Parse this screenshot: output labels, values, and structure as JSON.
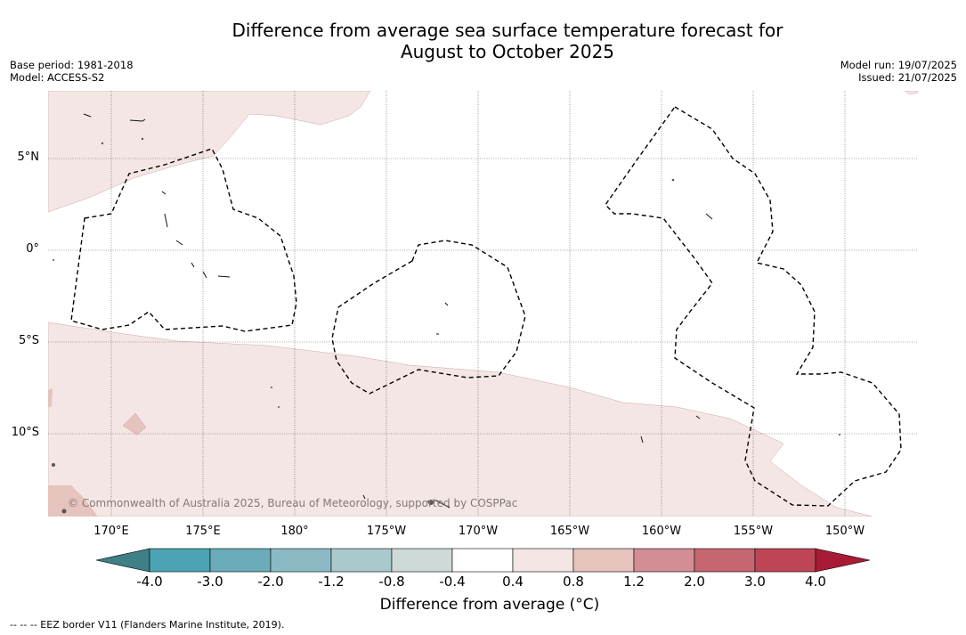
{
  "title_line1": "Difference from average sea surface temperature forecast for",
  "title_line2": "August to October 2025",
  "meta_left": [
    "Base period: 1981-2018",
    "Model: ACCESS-S2"
  ],
  "meta_right": [
    "Model run: 19/07/2025",
    "Issued: 21/07/2025"
  ],
  "lat_labels": [
    {
      "text": "5°N",
      "lat": 5
    },
    {
      "text": "0°",
      "lat": 0
    },
    {
      "text": "5°S",
      "lat": -5
    },
    {
      "text": "10°S",
      "lat": -10
    }
  ],
  "lon_labels": [
    {
      "text": "170°E",
      "lon": 170
    },
    {
      "text": "175°E",
      "lon": 175
    },
    {
      "text": "180°",
      "lon": 180
    },
    {
      "text": "175°W",
      "lon": 185
    },
    {
      "text": "170°W",
      "lon": 190
    },
    {
      "text": "165°W",
      "lon": 195
    },
    {
      "text": "160°W",
      "lon": 200
    },
    {
      "text": "155°W",
      "lon": 205
    },
    {
      "text": "150°W",
      "lon": 210
    }
  ],
  "copyright": "© Commonwealth of Australia 2025, Bureau of Meteorology, supported by COSPPac",
  "colorbar": {
    "title": "Difference from average (°C)",
    "ticks": [
      "-4.0",
      "-3.0",
      "-2.0",
      "-1.2",
      "-0.8",
      "-0.4",
      "0.4",
      "0.8",
      "1.2",
      "2.0",
      "3.0",
      "4.0"
    ],
    "colors": [
      "#3f7f86",
      "#4ba3b3",
      "#6aacba",
      "#8bbac5",
      "#a9c9cd",
      "#cfd9d9",
      "#ffffff",
      "#f4e6e4",
      "#e6c3bd",
      "#d38d95",
      "#c66670",
      "#bd4555",
      "#a81a36"
    ]
  },
  "footnote": "-- -- -- EEZ border V11 (Flanders Marine Institute, 2019)."
}
